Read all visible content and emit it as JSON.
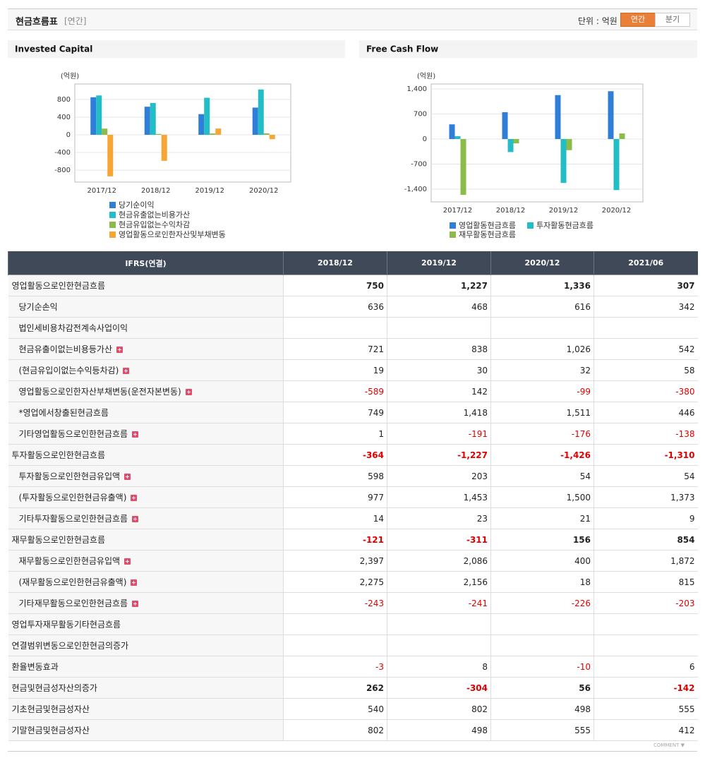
{
  "header": {
    "title": "현금흐름표",
    "period": "[연간]",
    "unit": "단위 : 억원",
    "buttons": [
      "연간",
      "분기"
    ]
  },
  "chart_data": [
    {
      "type": "bar",
      "title": "Invested Capital",
      "y_label": "(억원)",
      "categories": [
        "2017/12",
        "2018/12",
        "2019/12",
        "2020/12"
      ],
      "series": [
        {
          "name": "당기순이익",
          "color": "#2f7ed8",
          "values": [
            850,
            636,
            468,
            616
          ]
        },
        {
          "name": "현금유출없는비용가산",
          "color": "#23bdc7",
          "values": [
            890,
            721,
            838,
            1026
          ]
        },
        {
          "name": "현금유입없는수익차감",
          "color": "#8bbc4a",
          "values": [
            140,
            19,
            30,
            32
          ]
        },
        {
          "name": "영업활동으로인한자산및부채변동",
          "color": "#f7a535",
          "values": [
            -940,
            -589,
            142,
            -99
          ]
        }
      ],
      "ylim": [
        -1070,
        1150
      ],
      "yticks": [
        -800,
        -400,
        0,
        400,
        800
      ],
      "grid": true
    },
    {
      "type": "bar",
      "title": "Free Cash Flow",
      "y_label": "(억원)",
      "categories": [
        "2017/12",
        "2018/12",
        "2019/12",
        "2020/12"
      ],
      "series": [
        {
          "name": "영업활동현금흐름",
          "color": "#2f7ed8",
          "values": [
            410,
            750,
            1227,
            1336
          ]
        },
        {
          "name": "투자활동현금흐름",
          "color": "#23bdc7",
          "values": [
            80,
            -364,
            -1227,
            -1426
          ]
        },
        {
          "name": "재무활동현금흐름",
          "color": "#8bbc4a",
          "values": [
            -1560,
            -121,
            -311,
            156
          ]
        }
      ],
      "ylim": [
        -1755,
        1538
      ],
      "yticks": [
        {
          "value": -1400,
          "label": "-1,400"
        },
        -700,
        0,
        700,
        {
          "value": 1400,
          "label": "1,400"
        }
      ],
      "grid": true
    }
  ],
  "table": {
    "columns": [
      "IFRS(연결)",
      "2018/12",
      "2019/12",
      "2020/12",
      "2021/06"
    ],
    "rows": [
      {
        "label": "영업활동으로인한현금흐름",
        "values": [
          "750",
          "1,227",
          "1,336",
          "307"
        ],
        "bold": true,
        "main": true
      },
      {
        "label": "당기순손익",
        "values": [
          "636",
          "468",
          "616",
          "342"
        ],
        "indent": true
      },
      {
        "label": "법인세비용차감전계속사업이익",
        "values": [
          null,
          null,
          null,
          null
        ],
        "indent": true
      },
      {
        "label": "현금유출이없는비용등가산",
        "values": [
          "721",
          "838",
          "1,026",
          "542"
        ],
        "indent": true,
        "expandable": true
      },
      {
        "label": "(현금유입이없는수익등차감)",
        "values": [
          "19",
          "30",
          "32",
          "58"
        ],
        "indent": true,
        "expandable": true
      },
      {
        "label": "영업활동으로인한자산부채변동(운전자본변동)",
        "values": [
          "-589",
          "142",
          "-99",
          "-380"
        ],
        "indent": true,
        "expandable": true
      },
      {
        "label": "*영업에서창출된현금흐름",
        "values": [
          "749",
          "1,418",
          "1,511",
          "446"
        ],
        "indent": true
      },
      {
        "label": "기타영업활동으로인한현금흐름",
        "values": [
          "1",
          "-191",
          "-176",
          "-138"
        ],
        "indent": true,
        "expandable": true
      },
      {
        "label": "투자활동으로인한현금흐름",
        "values": [
          "-364",
          "-1,227",
          "-1,426",
          "-1,310"
        ],
        "bold": true,
        "main": true
      },
      {
        "label": "투자활동으로인한현금유입액",
        "values": [
          "598",
          "203",
          "54",
          "54"
        ],
        "indent": true,
        "expandable": true
      },
      {
        "label": "(투자활동으로인한현금유출액)",
        "values": [
          "977",
          "1,453",
          "1,500",
          "1,373"
        ],
        "indent": true,
        "expandable": true
      },
      {
        "label": "기타투자활동으로인한현금흐름",
        "values": [
          "14",
          "23",
          "21",
          "9"
        ],
        "indent": true,
        "expandable": true
      },
      {
        "label": "재무활동으로인한현금흐름",
        "values": [
          "-121",
          "-311",
          "156",
          "854"
        ],
        "bold": true,
        "main": true
      },
      {
        "label": "재무활동으로인한현금유입액",
        "values": [
          "2,397",
          "2,086",
          "400",
          "1,872"
        ],
        "indent": true,
        "expandable": true
      },
      {
        "label": "(재무활동으로인한현금유출액)",
        "values": [
          "2,275",
          "2,156",
          "18",
          "815"
        ],
        "indent": true,
        "expandable": true
      },
      {
        "label": "기타재무활동으로인한현금흐름",
        "values": [
          "-243",
          "-241",
          "-226",
          "-203"
        ],
        "indent": true,
        "expandable": true
      },
      {
        "label": "영업투자재무활동기타현금흐름",
        "values": [
          null,
          null,
          null,
          null
        ],
        "main": true
      },
      {
        "label": "연결범위변동으로인한현금의증가",
        "values": [
          null,
          null,
          null,
          null
        ]
      },
      {
        "label": "환율변동효과",
        "values": [
          "-3",
          "8",
          "-10",
          "6"
        ]
      },
      {
        "label": "현금및현금성자산의증가",
        "values": [
          "262",
          "-304",
          "56",
          "-142"
        ],
        "bold": true
      },
      {
        "label": "기초현금및현금성자산",
        "values": [
          "540",
          "802",
          "498",
          "555"
        ]
      },
      {
        "label": "기말현금및현금성자산",
        "values": [
          "802",
          "498",
          "555",
          "412"
        ]
      }
    ]
  },
  "footer": {
    "label": "COMMENT ▼"
  }
}
